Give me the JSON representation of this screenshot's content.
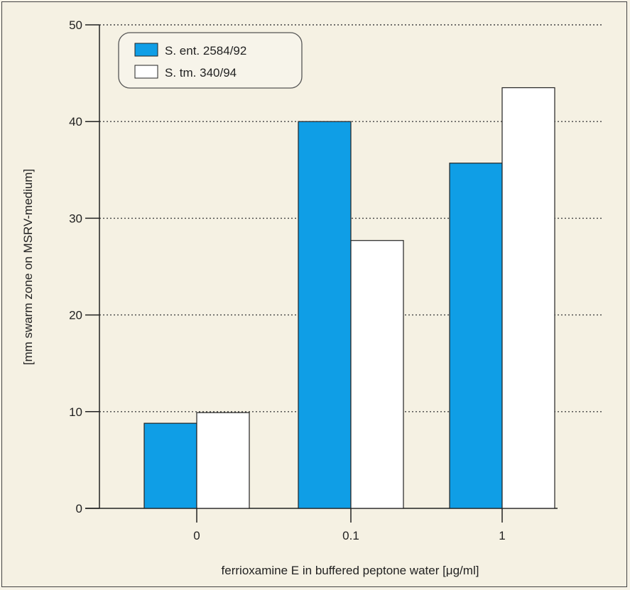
{
  "chart_data": {
    "type": "bar",
    "categories": [
      "0",
      "0.1",
      "1"
    ],
    "series": [
      {
        "name": "S. ent. 2584/92",
        "values": [
          8.8,
          40.0,
          35.7
        ],
        "color": "#0f9ee6"
      },
      {
        "name": "S. tm. 340/94",
        "values": [
          9.9,
          27.7,
          43.5
        ],
        "color": "#ffffff"
      }
    ],
    "xlabel": "ferrioxamine E in buffered peptone water [μg/ml]",
    "ylabel": "[mm swarm zone on MSRV-medium]",
    "ylim": [
      0,
      50
    ],
    "yticks": [
      0,
      10,
      20,
      30,
      40,
      50
    ],
    "grid": "dotted horizontal",
    "legend": "top-left",
    "background": "#f5f1e3"
  }
}
